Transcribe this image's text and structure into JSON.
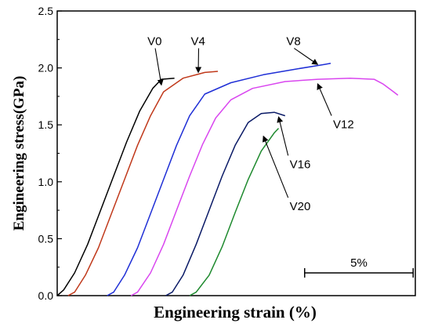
{
  "chart_data": {
    "type": "line",
    "xlabel": "Engineering strain (%)",
    "ylabel": "Engineering stress(GPa)",
    "ylim": [
      0,
      2.5
    ],
    "yticks": [
      "0.0",
      "0.5",
      "1.0",
      "1.5",
      "2.0",
      "2.5"
    ],
    "x_tick_labels": "none",
    "grid": false,
    "scale_bar": {
      "label": "5%",
      "strain_span": 5
    },
    "series": [
      {
        "name": "V0",
        "color": "#000000",
        "points": [
          [
            0.0,
            0.0
          ],
          [
            0.3,
            0.05
          ],
          [
            0.8,
            0.2
          ],
          [
            1.4,
            0.45
          ],
          [
            2.0,
            0.75
          ],
          [
            2.6,
            1.05
          ],
          [
            3.2,
            1.35
          ],
          [
            3.8,
            1.62
          ],
          [
            4.4,
            1.82
          ],
          [
            4.8,
            1.9
          ],
          [
            5.4,
            1.91
          ]
        ]
      },
      {
        "name": "V4",
        "color": "#c0391b",
        "points": [
          [
            0.5,
            0.0
          ],
          [
            0.8,
            0.03
          ],
          [
            1.3,
            0.18
          ],
          [
            1.9,
            0.42
          ],
          [
            2.5,
            0.72
          ],
          [
            3.1,
            1.02
          ],
          [
            3.7,
            1.32
          ],
          [
            4.3,
            1.58
          ],
          [
            4.9,
            1.79
          ],
          [
            5.8,
            1.91
          ],
          [
            6.8,
            1.96
          ],
          [
            7.4,
            1.97
          ]
        ]
      },
      {
        "name": "V8",
        "color": "#1f2fd6",
        "points": [
          [
            2.3,
            0.0
          ],
          [
            2.6,
            0.03
          ],
          [
            3.1,
            0.18
          ],
          [
            3.7,
            0.42
          ],
          [
            4.3,
            0.72
          ],
          [
            4.9,
            1.02
          ],
          [
            5.5,
            1.32
          ],
          [
            6.1,
            1.58
          ],
          [
            6.8,
            1.77
          ],
          [
            8.0,
            1.87
          ],
          [
            9.5,
            1.94
          ],
          [
            11.0,
            1.99
          ],
          [
            12.3,
            2.03
          ],
          [
            12.6,
            2.04
          ]
        ]
      },
      {
        "name": "V12",
        "color": "#d946ef",
        "points": [
          [
            3.4,
            0.0
          ],
          [
            3.7,
            0.03
          ],
          [
            4.3,
            0.2
          ],
          [
            4.9,
            0.45
          ],
          [
            5.5,
            0.75
          ],
          [
            6.1,
            1.05
          ],
          [
            6.7,
            1.33
          ],
          [
            7.3,
            1.56
          ],
          [
            8.0,
            1.72
          ],
          [
            9.0,
            1.82
          ],
          [
            10.5,
            1.88
          ],
          [
            12.0,
            1.9
          ],
          [
            13.5,
            1.91
          ],
          [
            14.6,
            1.9
          ],
          [
            15.0,
            1.86
          ],
          [
            15.5,
            1.79
          ],
          [
            15.7,
            1.76
          ]
        ]
      },
      {
        "name": "V16",
        "color": "#0a1a66",
        "points": [
          [
            5.0,
            0.0
          ],
          [
            5.3,
            0.03
          ],
          [
            5.8,
            0.18
          ],
          [
            6.4,
            0.45
          ],
          [
            7.0,
            0.75
          ],
          [
            7.6,
            1.05
          ],
          [
            8.2,
            1.32
          ],
          [
            8.8,
            1.52
          ],
          [
            9.4,
            1.6
          ],
          [
            10.0,
            1.61
          ],
          [
            10.5,
            1.58
          ]
        ]
      },
      {
        "name": "V20",
        "color": "#1e8a2e",
        "points": [
          [
            6.1,
            0.0
          ],
          [
            6.4,
            0.03
          ],
          [
            7.0,
            0.18
          ],
          [
            7.6,
            0.43
          ],
          [
            8.2,
            0.73
          ],
          [
            8.8,
            1.02
          ],
          [
            9.4,
            1.27
          ],
          [
            10.0,
            1.43
          ],
          [
            10.2,
            1.47
          ]
        ]
      }
    ],
    "callouts": [
      {
        "label": "V0",
        "at_x": 4.8,
        "at_y": 1.85,
        "text_x": 4.3,
        "text_y": 2.2
      },
      {
        "label": "V4",
        "at_x": 6.5,
        "at_y": 1.96,
        "text_x": 6.3,
        "text_y": 2.2
      },
      {
        "label": "V8",
        "at_x": 12.0,
        "at_y": 2.03,
        "text_x": 10.7,
        "text_y": 2.2
      },
      {
        "label": "V12",
        "at_x": 12.0,
        "at_y": 1.86,
        "text_x": 13.0,
        "text_y": 1.47
      },
      {
        "label": "V16",
        "at_x": 10.2,
        "at_y": 1.57,
        "text_x": 11.0,
        "text_y": 1.12
      },
      {
        "label": "V20",
        "at_x": 9.5,
        "at_y": 1.4,
        "text_x": 11.0,
        "text_y": 0.75
      }
    ]
  }
}
